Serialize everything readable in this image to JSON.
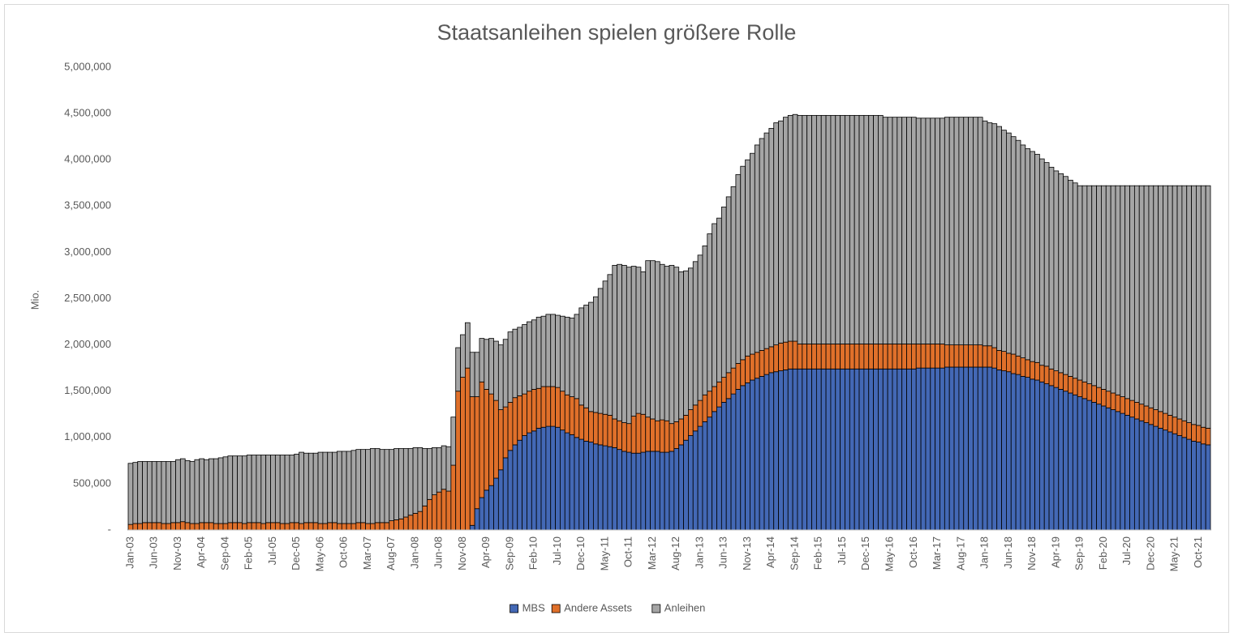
{
  "chart_data": {
    "type": "stacked_bar",
    "title": "Staatsanleihen spielen größere Rolle",
    "y_label": "Mio.",
    "legend": "bottom",
    "ylim": [
      0,
      5000000
    ],
    "yticks": [
      {
        "value": 0,
        "label": "-"
      },
      {
        "value": 500000,
        "label": "500,000"
      },
      {
        "value": 1000000,
        "label": "1,000,000"
      },
      {
        "value": 1500000,
        "label": "1,500,000"
      },
      {
        "value": 2000000,
        "label": "2,000,000"
      },
      {
        "value": 2500000,
        "label": "2,500,000"
      },
      {
        "value": 3000000,
        "label": "3,000,000"
      },
      {
        "value": 3500000,
        "label": "3,500,000"
      },
      {
        "value": 4000000,
        "label": "4,000,000"
      },
      {
        "value": 4500000,
        "label": "4,500,000"
      },
      {
        "value": 5000000,
        "label": "5,000,000"
      }
    ],
    "categories": [
      "Jan-03",
      null,
      null,
      null,
      null,
      "Jun-03",
      null,
      null,
      null,
      null,
      "Nov-03",
      null,
      null,
      null,
      null,
      "Apr-04",
      null,
      null,
      null,
      null,
      "Sep-04",
      null,
      null,
      null,
      null,
      "Feb-05",
      null,
      null,
      null,
      null,
      "Jul-05",
      null,
      null,
      null,
      null,
      "Dec-05",
      null,
      null,
      null,
      null,
      "May-06",
      null,
      null,
      null,
      null,
      "Oct-06",
      null,
      null,
      null,
      null,
      "Mar-07",
      null,
      null,
      null,
      null,
      "Aug-07",
      null,
      null,
      null,
      null,
      "Jan-08",
      null,
      null,
      null,
      null,
      "Jun-08",
      null,
      null,
      null,
      null,
      "Nov-08",
      null,
      null,
      null,
      null,
      "Apr-09",
      null,
      null,
      null,
      null,
      "Sep-09",
      null,
      null,
      null,
      null,
      "Feb-10",
      null,
      null,
      null,
      null,
      "Jul-10",
      null,
      null,
      null,
      null,
      "Dec-10",
      null,
      null,
      null,
      null,
      "May-11",
      null,
      null,
      null,
      null,
      "Oct-11",
      null,
      null,
      null,
      null,
      "Mar-12",
      null,
      null,
      null,
      null,
      "Aug-12",
      null,
      null,
      null,
      null,
      "Jan-13",
      null,
      null,
      null,
      null,
      "Jun-13",
      null,
      null,
      null,
      null,
      "Nov-13",
      null,
      null,
      null,
      null,
      "Apr-14",
      null,
      null,
      null,
      null,
      "Sep-14",
      null,
      null,
      null,
      null,
      "Feb-15",
      null,
      null,
      null,
      null,
      "Jul-15",
      null,
      null,
      null,
      null,
      "Dec-15",
      null,
      null,
      null,
      null,
      "May-16",
      null,
      null,
      null,
      null,
      "Oct-16",
      null,
      null,
      null,
      null,
      "Mar-17",
      null,
      null,
      null,
      null,
      "Aug-17",
      null,
      null,
      null,
      null,
      "Jan-18",
      null,
      null,
      null,
      null,
      "Jun-18",
      null,
      null,
      null,
      null,
      "Nov-18",
      null,
      null,
      null,
      null,
      "Apr-19",
      null,
      null,
      null,
      null,
      "Sep-19",
      null,
      null,
      null,
      null,
      "Feb-20",
      null,
      null,
      null,
      null,
      "Jul-20",
      null,
      null,
      null,
      null,
      "Dec-20",
      null,
      null,
      null,
      null,
      "May-21",
      null,
      null,
      null,
      null,
      "Oct-21",
      null,
      null
    ],
    "series": [
      {
        "name": "MBS",
        "color": "#4368b5",
        "values": [
          0,
          0,
          0,
          0,
          0,
          0,
          0,
          0,
          0,
          0,
          0,
          0,
          0,
          0,
          0,
          0,
          0,
          0,
          0,
          0,
          0,
          0,
          0,
          0,
          0,
          0,
          0,
          0,
          0,
          0,
          0,
          0,
          0,
          0,
          0,
          0,
          0,
          0,
          0,
          0,
          0,
          0,
          0,
          0,
          0,
          0,
          0,
          0,
          0,
          0,
          0,
          0,
          0,
          0,
          0,
          0,
          0,
          0,
          0,
          0,
          0,
          0,
          0,
          0,
          0,
          0,
          0,
          0,
          0,
          0,
          0,
          0,
          50000,
          230000,
          350000,
          430000,
          480000,
          560000,
          650000,
          780000,
          860000,
          920000,
          970000,
          1020000,
          1050000,
          1070000,
          1100000,
          1110000,
          1120000,
          1120000,
          1110000,
          1080000,
          1050000,
          1030000,
          1000000,
          980000,
          960000,
          950000,
          930000,
          920000,
          910000,
          900000,
          890000,
          870000,
          850000,
          840000,
          830000,
          830000,
          840000,
          850000,
          850000,
          850000,
          840000,
          840000,
          850000,
          880000,
          920000,
          970000,
          1020000,
          1070000,
          1120000,
          1170000,
          1220000,
          1280000,
          1330000,
          1380000,
          1420000,
          1470000,
          1520000,
          1560000,
          1590000,
          1620000,
          1640000,
          1660000,
          1680000,
          1700000,
          1710000,
          1720000,
          1730000,
          1740000,
          1740000,
          1740000,
          1740000,
          1740000,
          1740000,
          1740000,
          1740000,
          1740000,
          1740000,
          1740000,
          1740000,
          1740000,
          1740000,
          1740000,
          1740000,
          1740000,
          1740000,
          1740000,
          1740000,
          1740000,
          1740000,
          1740000,
          1740000,
          1740000,
          1740000,
          1740000,
          1750000,
          1750000,
          1750000,
          1750000,
          1750000,
          1750000,
          1760000,
          1760000,
          1760000,
          1760000,
          1760000,
          1760000,
          1760000,
          1760000,
          1760000,
          1760000,
          1750000,
          1730000,
          1720000,
          1710000,
          1690000,
          1680000,
          1660000,
          1650000,
          1630000,
          1620000,
          1600000,
          1580000,
          1560000,
          1540000,
          1520000,
          1500000,
          1480000,
          1460000,
          1440000,
          1420000,
          1400000,
          1380000,
          1360000,
          1340000,
          1320000,
          1300000,
          1280000,
          1260000,
          1240000,
          1220000,
          1200000,
          1180000,
          1160000,
          1140000,
          1120000,
          1100000,
          1080000,
          1060000,
          1040000,
          1020000,
          1000000,
          980000,
          960000,
          950000,
          930000,
          920000
        ]
      },
      {
        "name": "Andere Assets",
        "color": "#e0702a",
        "values": [
          60000,
          70000,
          70000,
          80000,
          80000,
          80000,
          80000,
          70000,
          70000,
          80000,
          80000,
          90000,
          80000,
          70000,
          70000,
          80000,
          80000,
          80000,
          70000,
          70000,
          70000,
          80000,
          80000,
          80000,
          70000,
          80000,
          80000,
          80000,
          70000,
          80000,
          80000,
          80000,
          70000,
          70000,
          80000,
          80000,
          70000,
          80000,
          80000,
          80000,
          70000,
          70000,
          80000,
          80000,
          70000,
          70000,
          70000,
          70000,
          80000,
          80000,
          70000,
          70000,
          80000,
          80000,
          80000,
          100000,
          110000,
          120000,
          140000,
          160000,
          180000,
          200000,
          260000,
          330000,
          380000,
          410000,
          440000,
          420000,
          700000,
          1500000,
          1650000,
          1750000,
          1390000,
          1210000,
          1250000,
          1090000,
          990000,
          840000,
          650000,
          550000,
          520000,
          510000,
          480000,
          450000,
          450000,
          450000,
          430000,
          440000,
          430000,
          430000,
          430000,
          420000,
          410000,
          410000,
          420000,
          370000,
          360000,
          330000,
          340000,
          340000,
          340000,
          340000,
          310000,
          310000,
          310000,
          310000,
          400000,
          430000,
          410000,
          370000,
          350000,
          330000,
          350000,
          340000,
          300000,
          290000,
          280000,
          270000,
          280000,
          280000,
          280000,
          290000,
          280000,
          270000,
          270000,
          270000,
          280000,
          280000,
          280000,
          280000,
          290000,
          280000,
          280000,
          280000,
          280000,
          280000,
          290000,
          300000,
          300000,
          300000,
          300000,
          270000,
          270000,
          270000,
          270000,
          270000,
          270000,
          270000,
          270000,
          270000,
          270000,
          270000,
          270000,
          270000,
          270000,
          270000,
          270000,
          270000,
          270000,
          270000,
          270000,
          270000,
          270000,
          270000,
          270000,
          270000,
          260000,
          260000,
          260000,
          260000,
          260000,
          260000,
          240000,
          240000,
          240000,
          240000,
          240000,
          240000,
          240000,
          240000,
          230000,
          230000,
          220000,
          210000,
          210000,
          200000,
          210000,
          200000,
          200000,
          190000,
          190000,
          190000,
          180000,
          190000,
          180000,
          180000,
          180000,
          180000,
          180000,
          180000,
          180000,
          180000,
          180000,
          180000,
          180000,
          180000,
          180000,
          180000,
          180000,
          180000,
          180000,
          180000,
          180000,
          180000,
          180000,
          180000,
          180000,
          180000,
          180000,
          180000,
          180000,
          180000,
          180000,
          180000,
          180000,
          180000,
          180000,
          180000
        ]
      },
      {
        "name": "Anleihen",
        "color": "#a5a5a5",
        "values": [
          660000,
          660000,
          670000,
          660000,
          660000,
          660000,
          660000,
          670000,
          670000,
          660000,
          680000,
          680000,
          670000,
          670000,
          690000,
          690000,
          680000,
          690000,
          700000,
          710000,
          720000,
          720000,
          720000,
          720000,
          730000,
          730000,
          730000,
          730000,
          740000,
          730000,
          730000,
          730000,
          740000,
          740000,
          730000,
          740000,
          770000,
          750000,
          750000,
          750000,
          770000,
          770000,
          760000,
          760000,
          780000,
          780000,
          780000,
          790000,
          790000,
          790000,
          800000,
          810000,
          800000,
          790000,
          790000,
          770000,
          770000,
          760000,
          740000,
          720000,
          710000,
          690000,
          620000,
          550000,
          510000,
          480000,
          470000,
          480000,
          520000,
          470000,
          460000,
          490000,
          480000,
          480000,
          470000,
          540000,
          600000,
          640000,
          700000,
          730000,
          760000,
          740000,
          740000,
          750000,
          750000,
          750000,
          770000,
          760000,
          780000,
          780000,
          780000,
          810000,
          840000,
          850000,
          910000,
          1050000,
          1110000,
          1180000,
          1250000,
          1350000,
          1440000,
          1520000,
          1660000,
          1690000,
          1700000,
          1690000,
          1620000,
          1580000,
          1540000,
          1690000,
          1710000,
          1720000,
          1680000,
          1670000,
          1710000,
          1670000,
          1590000,
          1560000,
          1530000,
          1550000,
          1570000,
          1610000,
          1700000,
          1760000,
          1770000,
          1840000,
          1900000,
          1960000,
          2040000,
          2090000,
          2120000,
          2170000,
          2240000,
          2290000,
          2330000,
          2360000,
          2400000,
          2400000,
          2430000,
          2440000,
          2450000,
          2470000,
          2470000,
          2470000,
          2470000,
          2470000,
          2470000,
          2470000,
          2470000,
          2470000,
          2470000,
          2470000,
          2470000,
          2470000,
          2470000,
          2470000,
          2470000,
          2470000,
          2470000,
          2450000,
          2450000,
          2450000,
          2450000,
          2450000,
          2450000,
          2450000,
          2440000,
          2440000,
          2440000,
          2440000,
          2440000,
          2440000,
          2460000,
          2460000,
          2460000,
          2460000,
          2460000,
          2460000,
          2460000,
          2460000,
          2430000,
          2410000,
          2420000,
          2420000,
          2390000,
          2380000,
          2350000,
          2330000,
          2300000,
          2280000,
          2270000,
          2250000,
          2230000,
          2200000,
          2180000,
          2160000,
          2150000,
          2140000,
          2120000,
          2110000,
          2100000,
          2120000,
          2140000,
          2160000,
          2180000,
          2200000,
          2220000,
          2240000,
          2260000,
          2280000,
          2300000,
          2320000,
          2340000,
          2360000,
          2380000,
          2400000,
          2420000,
          2440000,
          2460000,
          2480000,
          2500000,
          2520000,
          2540000,
          2560000,
          2580000,
          2590000,
          2610000,
          2620000
        ]
      }
    ]
  }
}
